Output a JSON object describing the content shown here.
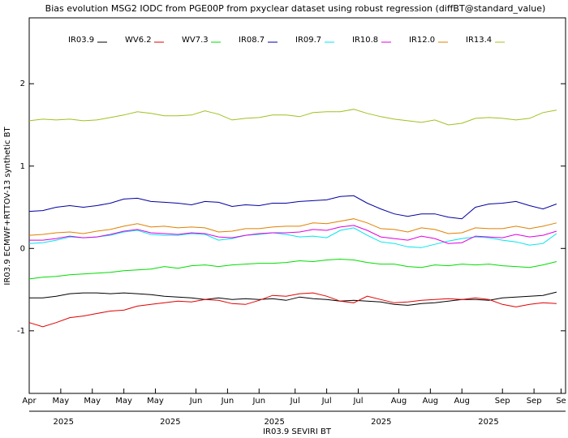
{
  "chart_data": {
    "type": "line",
    "title": "Bias evolution MSG2 IODC from PGE00P from pxyclear dataset using robust regression (diffBT@standard_value)",
    "xlabel": "IR03.9 SEVIRI BT",
    "ylabel": "IR03.9 ECMWF+RTTOV-13 synthetic BT",
    "xlim": [
      0,
      119
    ],
    "ylim": [
      -1.76,
      2.8
    ],
    "yticks": [
      -1,
      0,
      1,
      2
    ],
    "xticks": [
      {
        "value": 0,
        "label": "Apr"
      },
      {
        "value": 7,
        "label": "May"
      },
      {
        "value": 14,
        "label": "May"
      },
      {
        "value": 21,
        "label": "May"
      },
      {
        "value": 28,
        "label": "May"
      },
      {
        "value": 37,
        "label": "Jun"
      },
      {
        "value": 44,
        "label": "Jun"
      },
      {
        "value": 51,
        "label": "Jun"
      },
      {
        "value": 59,
        "label": "Jul"
      },
      {
        "value": 66,
        "label": "Jul"
      },
      {
        "value": 73,
        "label": "Jul"
      },
      {
        "value": 82,
        "label": "Aug"
      },
      {
        "value": 89,
        "label": "Aug"
      },
      {
        "value": 96,
        "label": "Aug"
      },
      {
        "value": 105,
        "label": "Sep"
      },
      {
        "value": 112,
        "label": "Sep"
      },
      {
        "value": 118,
        "label": "Se"
      }
    ],
    "xticks2": [
      {
        "value": 7.6,
        "label": "2025"
      },
      {
        "value": 31.3,
        "label": "2025"
      },
      {
        "value": 54.4,
        "label": "2025"
      },
      {
        "value": 78.1,
        "label": "2025"
      },
      {
        "value": 101.9,
        "label": "2025"
      }
    ],
    "x": [
      0,
      3,
      6,
      9,
      12,
      15,
      18,
      21,
      24,
      27,
      30,
      33,
      36,
      39,
      42,
      45,
      48,
      51,
      54,
      57,
      60,
      63,
      66,
      69,
      72,
      75,
      78,
      81,
      84,
      87,
      90,
      93,
      96,
      99,
      102,
      105,
      108,
      111,
      114,
      117
    ],
    "series": [
      {
        "name": "IR03.9",
        "color": "#000000",
        "values": [
          -0.6,
          -0.6,
          -0.58,
          -0.55,
          -0.54,
          -0.54,
          -0.55,
          -0.54,
          -0.55,
          -0.56,
          -0.58,
          -0.59,
          -0.6,
          -0.62,
          -0.6,
          -0.62,
          -0.61,
          -0.62,
          -0.61,
          -0.63,
          -0.59,
          -0.61,
          -0.62,
          -0.64,
          -0.63,
          -0.64,
          -0.65,
          -0.68,
          -0.69,
          -0.67,
          -0.66,
          -0.64,
          -0.62,
          -0.62,
          -0.63,
          -0.6,
          -0.59,
          -0.58,
          -0.57,
          -0.53
        ]
      },
      {
        "name": "WV6.2",
        "color": "#e00000",
        "values": [
          -0.9,
          -0.95,
          -0.9,
          -0.84,
          -0.82,
          -0.79,
          -0.76,
          -0.75,
          -0.7,
          -0.68,
          -0.66,
          -0.64,
          -0.65,
          -0.62,
          -0.63,
          -0.67,
          -0.68,
          -0.63,
          -0.57,
          -0.58,
          -0.55,
          -0.54,
          -0.58,
          -0.64,
          -0.66,
          -0.58,
          -0.62,
          -0.66,
          -0.65,
          -0.63,
          -0.62,
          -0.61,
          -0.62,
          -0.6,
          -0.62,
          -0.68,
          -0.71,
          -0.68,
          -0.66,
          -0.67
        ]
      },
      {
        "name": "WV7.3",
        "color": "#00dd00",
        "values": [
          -0.37,
          -0.35,
          -0.34,
          -0.32,
          -0.31,
          -0.3,
          -0.29,
          -0.27,
          -0.26,
          -0.25,
          -0.22,
          -0.24,
          -0.21,
          -0.2,
          -0.22,
          -0.2,
          -0.19,
          -0.18,
          -0.18,
          -0.17,
          -0.15,
          -0.16,
          -0.14,
          -0.13,
          -0.14,
          -0.17,
          -0.19,
          -0.19,
          -0.22,
          -0.23,
          -0.2,
          -0.21,
          -0.19,
          -0.2,
          -0.19,
          -0.21,
          -0.22,
          -0.23,
          -0.2,
          -0.16
        ]
      },
      {
        "name": "IR08.7",
        "color": "#0000a0",
        "values": [
          0.45,
          0.46,
          0.5,
          0.52,
          0.5,
          0.52,
          0.55,
          0.6,
          0.61,
          0.57,
          0.56,
          0.55,
          0.53,
          0.57,
          0.56,
          0.51,
          0.53,
          0.52,
          0.55,
          0.55,
          0.57,
          0.58,
          0.59,
          0.63,
          0.64,
          0.55,
          0.48,
          0.42,
          0.39,
          0.42,
          0.42,
          0.38,
          0.36,
          0.5,
          0.54,
          0.55,
          0.57,
          0.52,
          0.48,
          0.54
        ]
      },
      {
        "name": "IR09.7",
        "color": "#00e5ee",
        "values": [
          0.06,
          0.07,
          0.1,
          0.14,
          0.13,
          0.14,
          0.16,
          0.2,
          0.22,
          0.17,
          0.16,
          0.16,
          0.18,
          0.17,
          0.1,
          0.12,
          0.16,
          0.17,
          0.19,
          0.17,
          0.14,
          0.15,
          0.13,
          0.22,
          0.25,
          0.16,
          0.08,
          0.06,
          0.02,
          0.01,
          0.05,
          0.09,
          0.12,
          0.14,
          0.13,
          0.1,
          0.08,
          0.04,
          0.06,
          0.18
        ]
      },
      {
        "name": "IR10.8",
        "color": "#e000e0",
        "values": [
          0.1,
          0.1,
          0.12,
          0.15,
          0.13,
          0.14,
          0.17,
          0.21,
          0.23,
          0.19,
          0.18,
          0.17,
          0.19,
          0.18,
          0.14,
          0.13,
          0.16,
          0.18,
          0.19,
          0.19,
          0.2,
          0.23,
          0.22,
          0.26,
          0.28,
          0.22,
          0.14,
          0.12,
          0.1,
          0.15,
          0.12,
          0.06,
          0.07,
          0.15,
          0.14,
          0.13,
          0.17,
          0.14,
          0.16,
          0.21
        ]
      },
      {
        "name": "IR12.0",
        "color": "#e08000",
        "values": [
          0.16,
          0.17,
          0.19,
          0.2,
          0.18,
          0.21,
          0.23,
          0.27,
          0.3,
          0.26,
          0.27,
          0.25,
          0.26,
          0.25,
          0.2,
          0.21,
          0.24,
          0.24,
          0.26,
          0.27,
          0.27,
          0.31,
          0.3,
          0.33,
          0.36,
          0.31,
          0.24,
          0.23,
          0.2,
          0.25,
          0.23,
          0.18,
          0.19,
          0.25,
          0.24,
          0.24,
          0.27,
          0.24,
          0.27,
          0.31
        ]
      },
      {
        "name": "IR13.4",
        "color": "#a0c020",
        "values": [
          1.55,
          1.57,
          1.56,
          1.57,
          1.55,
          1.56,
          1.59,
          1.62,
          1.66,
          1.64,
          1.61,
          1.61,
          1.62,
          1.67,
          1.63,
          1.56,
          1.58,
          1.59,
          1.62,
          1.62,
          1.6,
          1.65,
          1.66,
          1.66,
          1.69,
          1.64,
          1.6,
          1.57,
          1.55,
          1.53,
          1.56,
          1.5,
          1.52,
          1.58,
          1.59,
          1.58,
          1.56,
          1.58,
          1.65,
          1.68
        ]
      }
    ]
  }
}
